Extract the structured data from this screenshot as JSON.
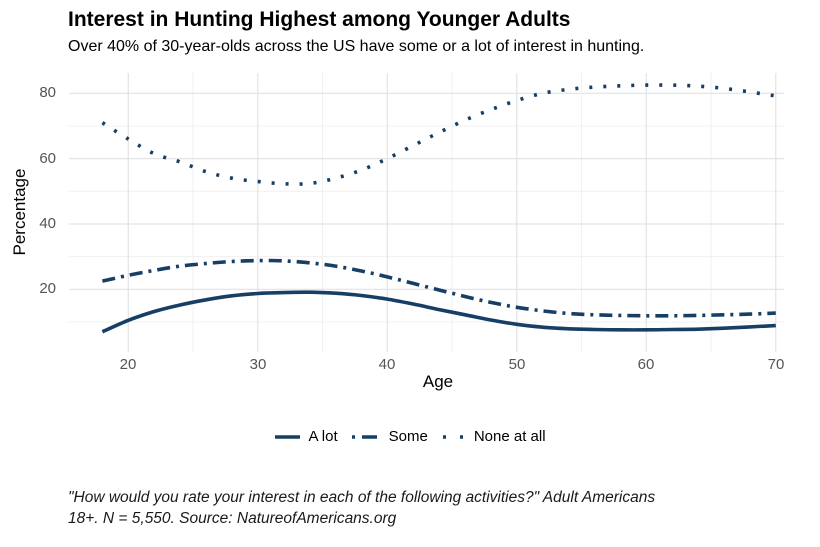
{
  "title": "Interest in Hunting Highest among Younger Adults",
  "subtitle": "Over 40% of 30-year-olds across the US have some or a lot of interest in hunting.",
  "caption": {
    "line1": "\"How would you rate your interest in each of the following activities?\" Adult Americans",
    "line2": "18+. N = 5,550. Source: NatureofAmericans.org"
  },
  "colors": {
    "line": "#173F66",
    "grid_major": "#e3e3e3",
    "grid_minor": "#f0f0f0",
    "tick_label": "#555555",
    "background": "#ffffff"
  },
  "chart_data": {
    "type": "line",
    "title": "Interest in Hunting Highest among Younger Adults",
    "subtitle": "Over 40% of 30-year-olds across the US have some or a lot of interest in hunting.",
    "xlabel": "Age",
    "ylabel": "Percentage",
    "grid": "on",
    "legend_position": "bottom",
    "xlim": [
      15.4,
      70.7
    ],
    "ylim": [
      0.5,
      86.5
    ],
    "x_ticks": [
      20,
      30,
      40,
      50,
      60,
      70
    ],
    "x_minor_ticks": [
      25,
      35,
      45,
      55,
      65
    ],
    "y_ticks": [
      20,
      40,
      60,
      80
    ],
    "y_minor_ticks": [
      10,
      30,
      50,
      70
    ],
    "x": [
      18,
      20,
      22,
      24,
      26,
      28,
      30,
      32,
      34,
      36,
      38,
      40,
      42,
      44,
      46,
      48,
      50,
      52,
      54,
      56,
      58,
      60,
      62,
      64,
      66,
      68,
      70
    ],
    "series": [
      {
        "name": "A lot",
        "dash": "solid",
        "values": [
          7.0,
          10.5,
          13.2,
          15.2,
          16.8,
          18.0,
          18.7,
          19.0,
          19.1,
          18.8,
          18.1,
          17.0,
          15.5,
          13.8,
          12.2,
          10.6,
          9.3,
          8.4,
          7.9,
          7.7,
          7.6,
          7.6,
          7.7,
          7.8,
          8.1,
          8.5,
          8.9
        ]
      },
      {
        "name": "Some",
        "dash": "dash-dot",
        "values": [
          22.5,
          24.3,
          25.8,
          27.1,
          27.9,
          28.5,
          28.8,
          28.7,
          28.1,
          27.1,
          25.6,
          23.8,
          21.8,
          19.8,
          17.8,
          16.0,
          14.5,
          13.4,
          12.6,
          12.2,
          12.0,
          11.9,
          11.9,
          12.0,
          12.2,
          12.4,
          12.7
        ]
      },
      {
        "name": "None at all",
        "dash": "dotted",
        "values": [
          71.0,
          66.0,
          61.5,
          59.0,
          56.0,
          54.0,
          53.0,
          52.3,
          52.4,
          54.0,
          56.5,
          60.0,
          64.0,
          68.0,
          71.8,
          75.0,
          77.8,
          80.0,
          81.2,
          81.9,
          82.3,
          82.5,
          82.5,
          82.2,
          81.5,
          80.4,
          79.2
        ]
      }
    ]
  }
}
